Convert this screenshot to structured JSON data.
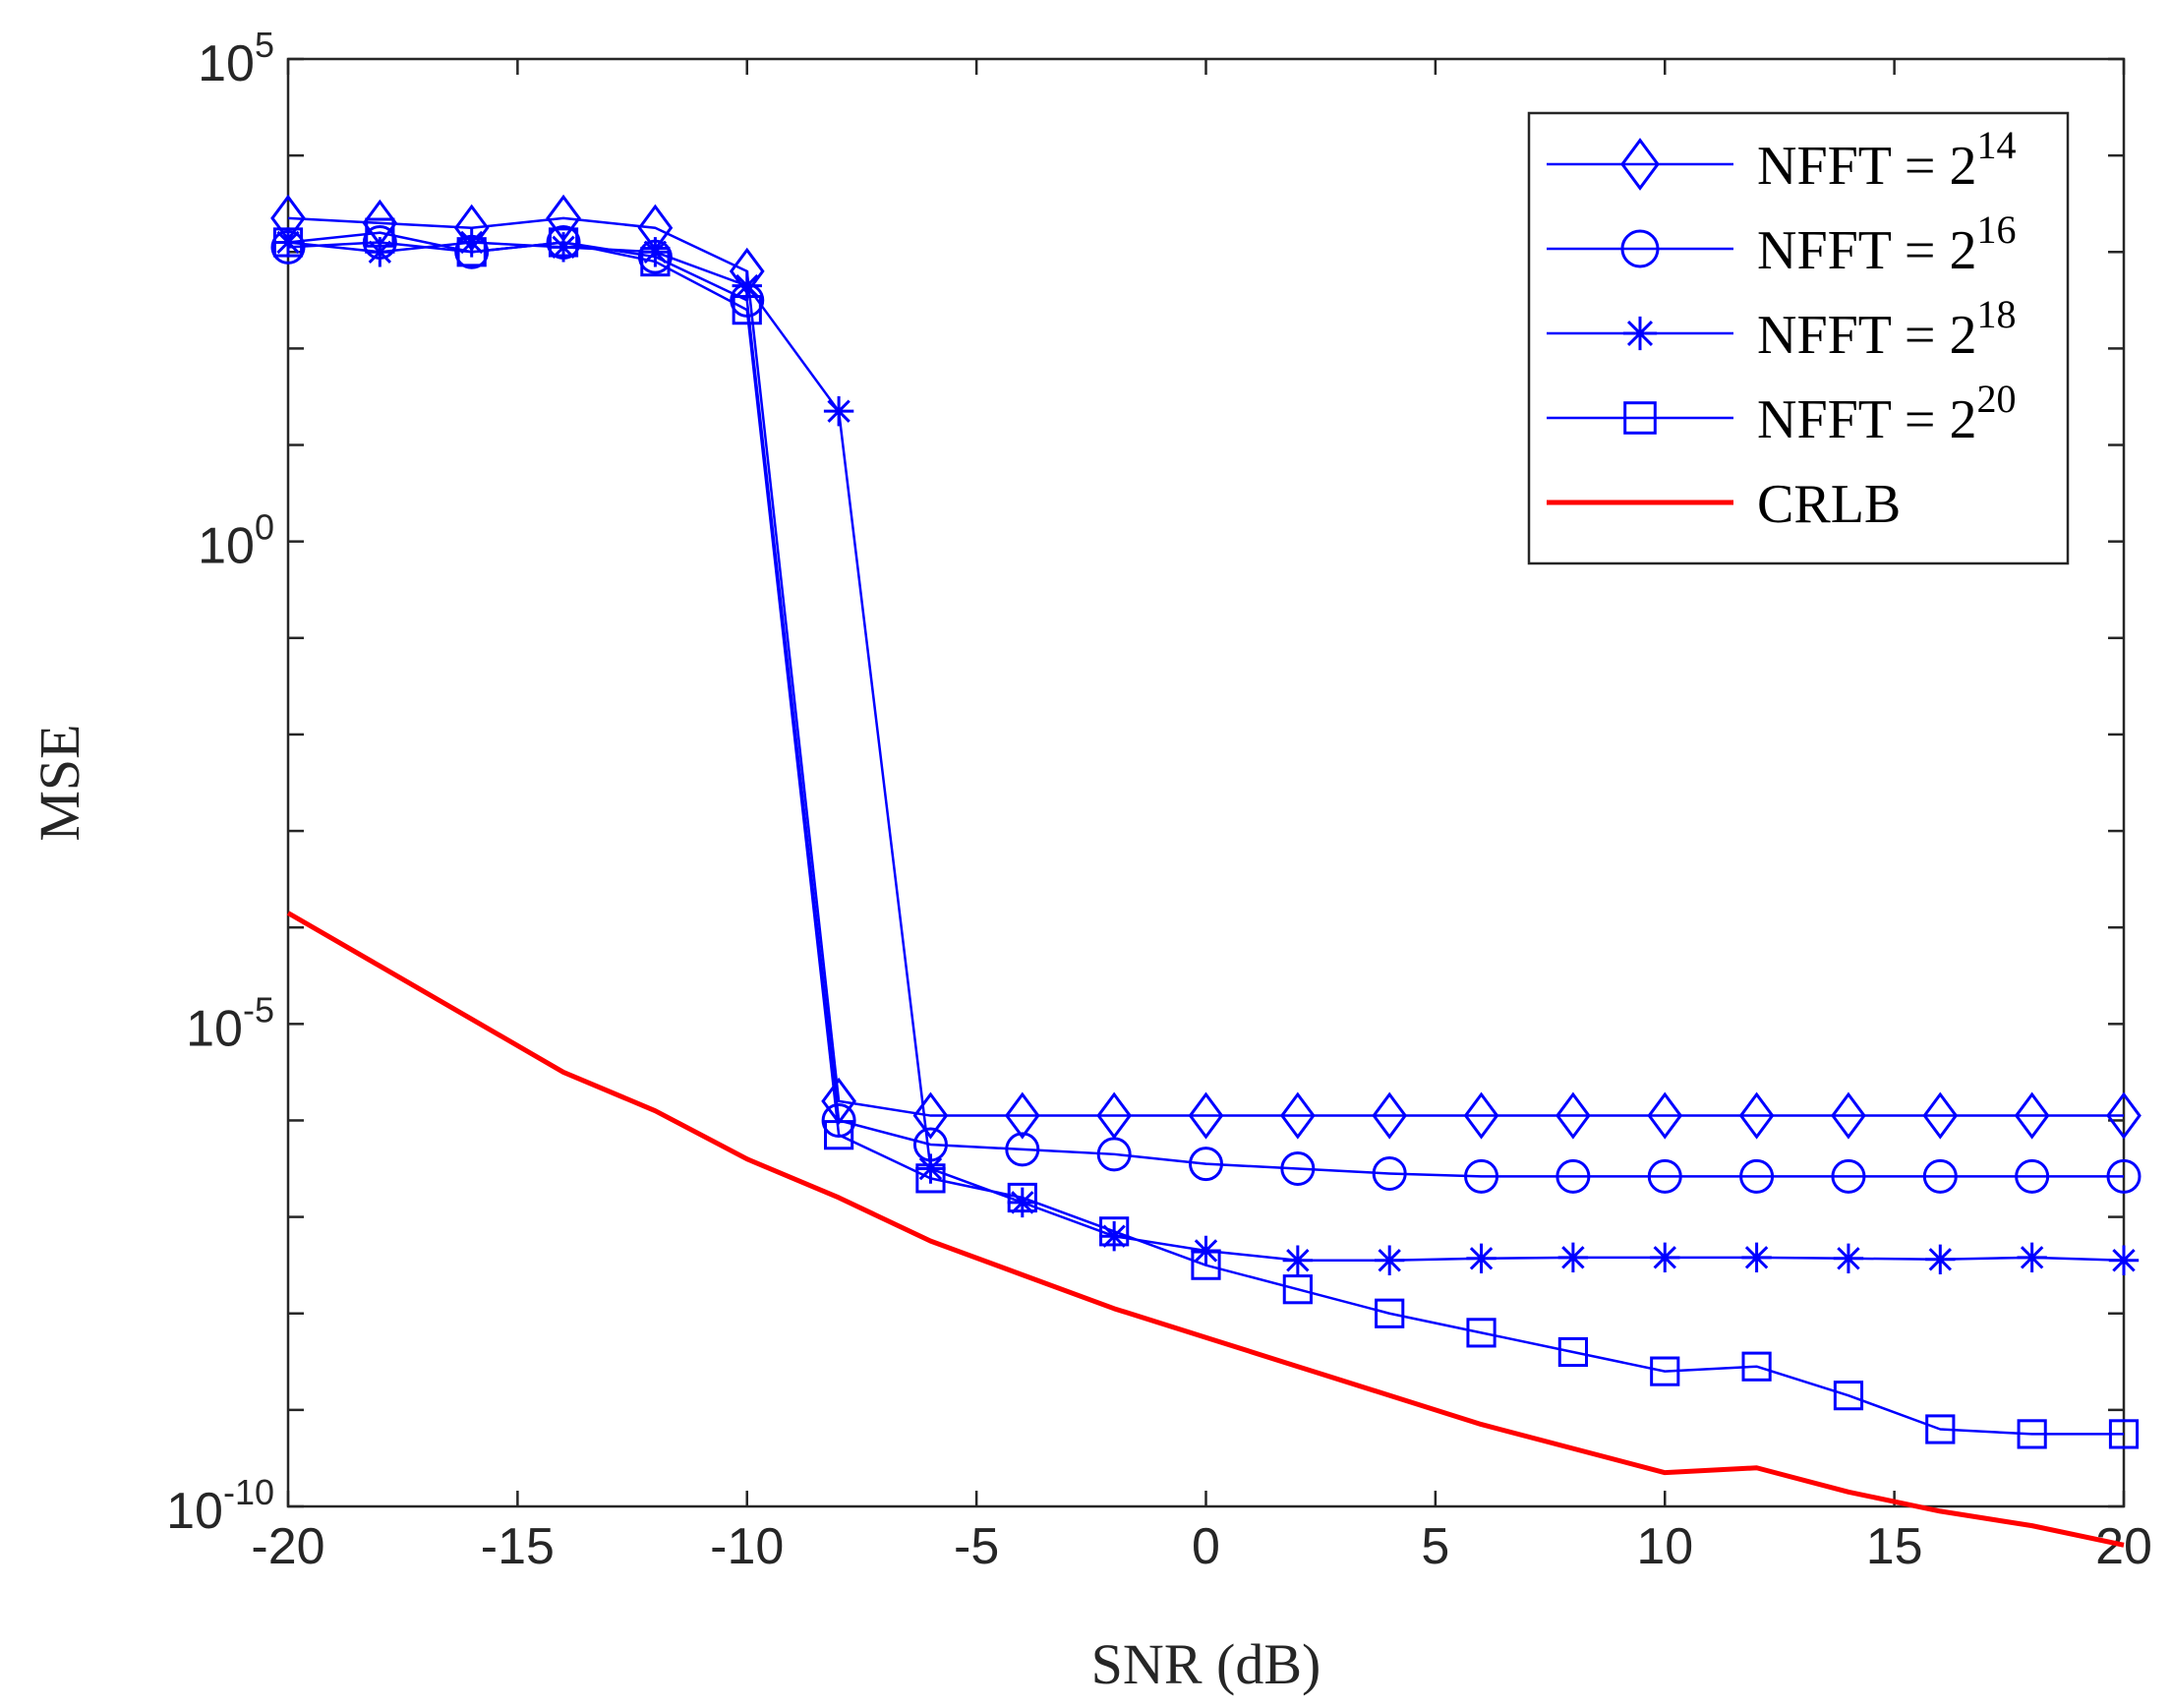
{
  "chart_data": {
    "type": "line",
    "title": "",
    "xlabel": "SNR (dB)",
    "ylabel": "MSE",
    "xscale": "linear",
    "yscale": "log",
    "xlim": [
      -20,
      20
    ],
    "ylim_exponent": [
      -10,
      5
    ],
    "xticks": [
      -20,
      -15,
      -10,
      -5,
      0,
      5,
      10,
      15,
      20
    ],
    "xtick_labels": [
      "-20",
      "-15",
      "-10",
      "-5",
      "0",
      "5",
      "10",
      "15",
      "20"
    ],
    "yticks": [
      {
        "base": "10",
        "exp": "-10",
        "value_exp": -10
      },
      {
        "base": "10",
        "exp": "-5",
        "value_exp": -5
      },
      {
        "base": "10",
        "exp": "0",
        "value_exp": 0
      },
      {
        "base": "10",
        "exp": "5",
        "value_exp": 5
      }
    ],
    "grid": false,
    "legend_position": "top-right",
    "series": [
      {
        "name": "NFFT = 2^14",
        "label_base": "NFFT = 2",
        "label_exp": "14",
        "marker": "diamond",
        "color": "#0000ff",
        "x": [
          -20,
          -18,
          -16,
          -14,
          -12,
          -10,
          -8,
          -6,
          -4,
          -2,
          0,
          2,
          4,
          6,
          8,
          10,
          12,
          14,
          16,
          18,
          20
        ],
        "log10_y": [
          3.35,
          3.3,
          3.25,
          3.35,
          3.25,
          2.8,
          -5.8,
          -5.95,
          -5.95,
          -5.95,
          -5.95,
          -5.95,
          -5.95,
          -5.95,
          -5.95,
          -5.95,
          -5.95,
          -5.95,
          -5.95,
          -5.95,
          -5.95
        ]
      },
      {
        "name": "NFFT = 2^16",
        "label_base": "NFFT = 2",
        "label_exp": "16",
        "marker": "circle",
        "color": "#0000ff",
        "x": [
          -20,
          -18,
          -16,
          -14,
          -12,
          -10,
          -8,
          -6,
          -4,
          -2,
          0,
          2,
          4,
          6,
          8,
          10,
          12,
          14,
          16,
          18,
          20
        ],
        "log10_y": [
          3.05,
          3.1,
          3.0,
          3.1,
          2.95,
          2.5,
          -6.0,
          -6.25,
          -6.3,
          -6.35,
          -6.45,
          -6.5,
          -6.55,
          -6.58,
          -6.58,
          -6.58,
          -6.58,
          -6.58,
          -6.58,
          -6.58,
          -6.58
        ]
      },
      {
        "name": "NFFT = 2^18",
        "label_base": "NFFT = 2",
        "label_exp": "18",
        "marker": "star",
        "color": "#0000ff",
        "x": [
          -20,
          -18,
          -16,
          -14,
          -12,
          -10,
          -8,
          -6,
          -4,
          -2,
          0,
          2,
          4,
          6,
          8,
          10,
          12,
          14,
          16,
          18,
          20
        ],
        "log10_y": [
          3.1,
          3.0,
          3.1,
          3.05,
          3.0,
          2.65,
          1.35,
          -6.5,
          -6.85,
          -7.2,
          -7.35,
          -7.45,
          -7.45,
          -7.43,
          -7.42,
          -7.42,
          -7.42,
          -7.43,
          -7.44,
          -7.42,
          -7.45
        ]
      },
      {
        "name": "NFFT = 2^20",
        "label_base": "NFFT = 2",
        "label_exp": "20",
        "marker": "square",
        "color": "#0000ff",
        "x": [
          -20,
          -18,
          -16,
          -14,
          -12,
          -10,
          -8,
          -6,
          -4,
          -2,
          0,
          2,
          4,
          6,
          8,
          10,
          12,
          14,
          16,
          18,
          20
        ],
        "log10_y": [
          3.1,
          3.2,
          3.0,
          3.1,
          2.9,
          2.4,
          -6.15,
          -6.6,
          -6.8,
          -7.15,
          -7.5,
          -7.75,
          -8.0,
          -8.2,
          -8.4,
          -8.6,
          -8.55,
          -8.85,
          -9.2,
          -9.25,
          -9.25
        ]
      },
      {
        "name": "CRLB",
        "label_base": "CRLB",
        "label_exp": "",
        "marker": "none",
        "color": "#ff0000",
        "x": [
          -20,
          -18,
          -16,
          -14,
          -12,
          -10,
          -8,
          -6,
          -4,
          -2,
          0,
          2,
          4,
          6,
          8,
          10,
          12,
          14,
          16,
          18,
          20
        ],
        "log10_y": [
          -3.85,
          -4.4,
          -4.95,
          -5.5,
          -5.9,
          -6.4,
          -6.8,
          -7.25,
          -7.6,
          -7.95,
          -8.25,
          -8.55,
          -8.85,
          -9.15,
          -9.4,
          -9.65,
          -9.6,
          -9.85,
          -10.05,
          -10.2,
          -10.4
        ]
      }
    ]
  }
}
